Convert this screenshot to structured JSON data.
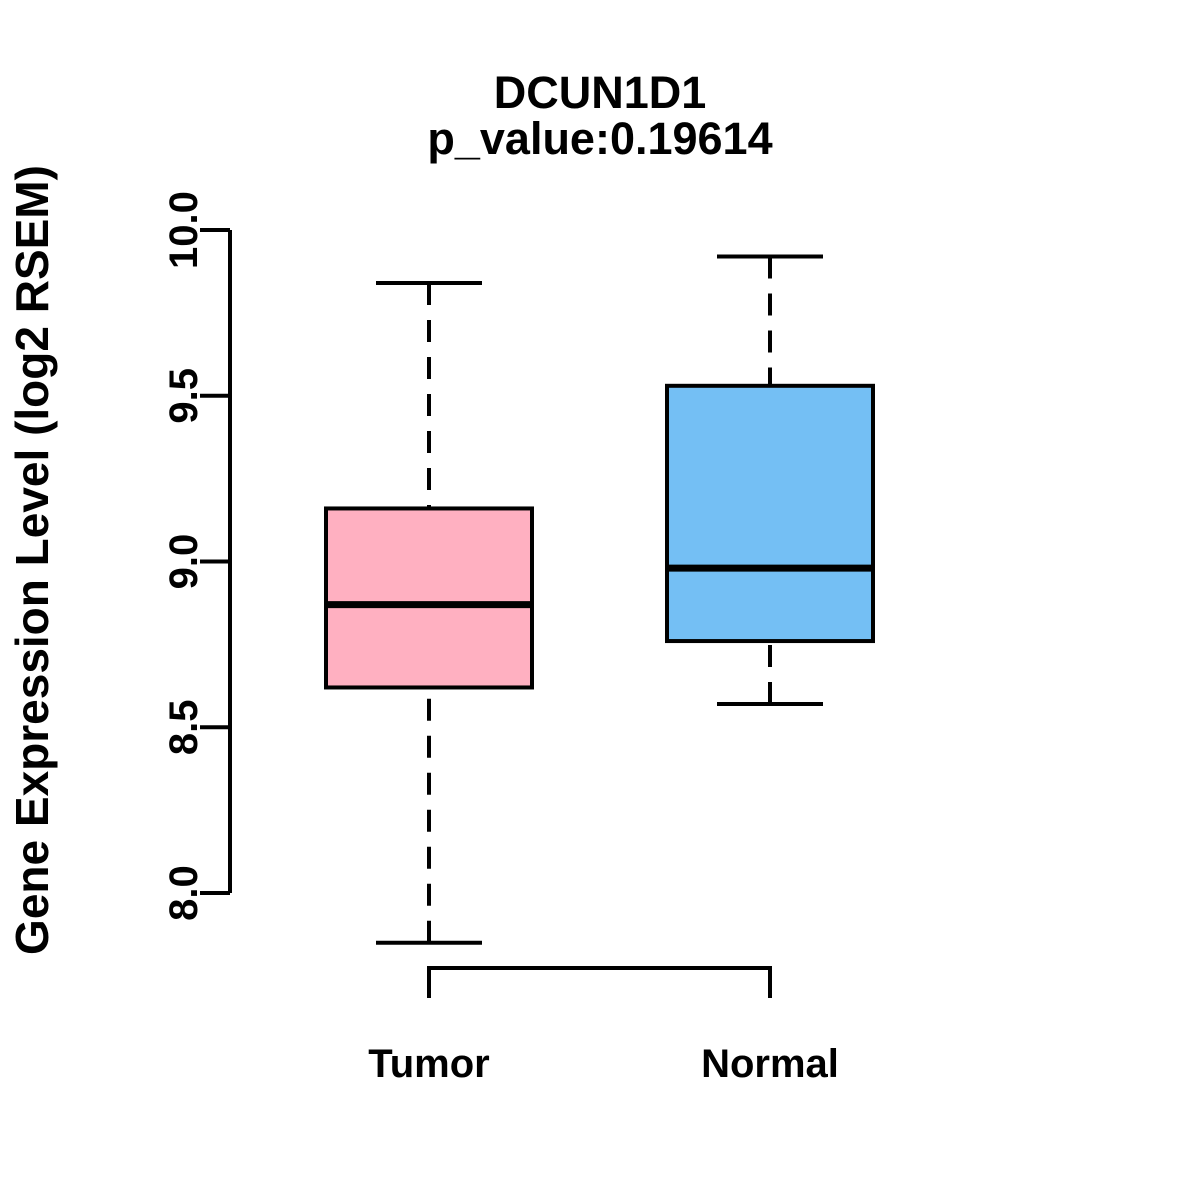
{
  "chart_data": {
    "type": "boxplot",
    "title": "DCUN1D1",
    "subtitle": "p_value:0.19614",
    "p_value": 0.19614,
    "ylabel": "Gene Expression Level (log2 RSEM)",
    "ylim": [
      8.0,
      10.0
    ],
    "yticks": [
      8.0,
      8.5,
      9.0,
      9.5,
      10.0
    ],
    "grid": false,
    "categories": [
      "Tumor",
      "Normal"
    ],
    "series": [
      {
        "name": "Tumor",
        "color": "#FFB0C1",
        "whisker_low": 7.85,
        "q1": 8.62,
        "median": 8.87,
        "q3": 9.16,
        "whisker_high": 9.84
      },
      {
        "name": "Normal",
        "color": "#74BFF4",
        "whisker_low": 8.57,
        "q1": 8.76,
        "median": 8.98,
        "q3": 9.53,
        "whisker_high": 9.92
      }
    ]
  }
}
